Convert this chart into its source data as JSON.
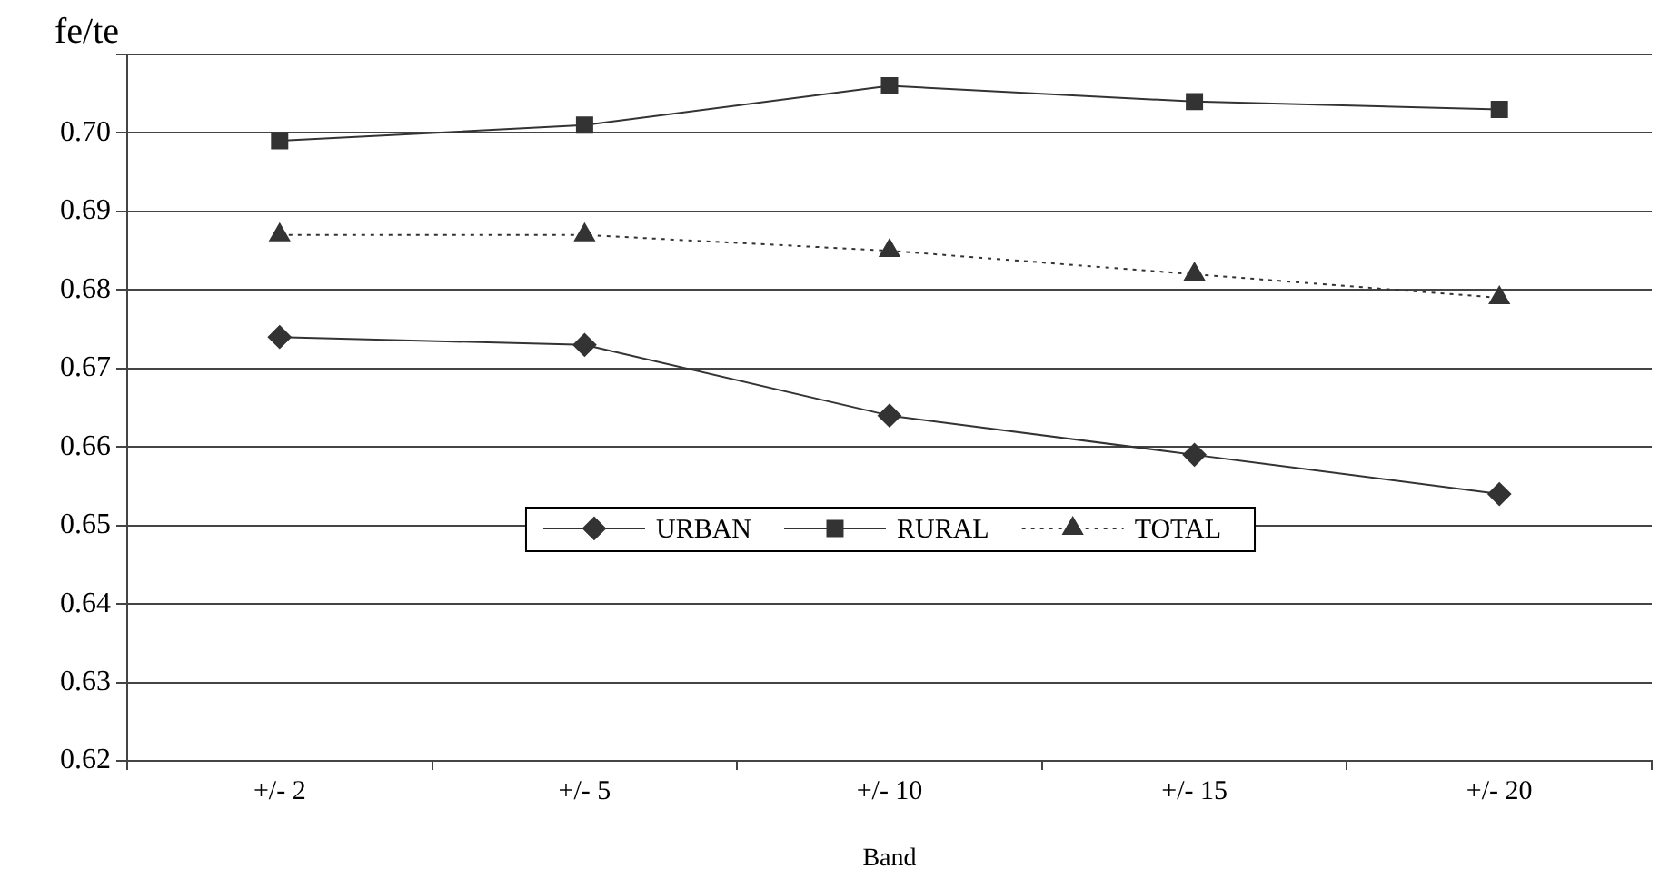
{
  "chart_data": {
    "type": "line",
    "xlabel": "Band",
    "ylabel": "fe/te",
    "categories": [
      "+/- 2",
      "+/- 5",
      "+/- 10",
      "+/- 15",
      "+/- 20"
    ],
    "ylim": [
      0.62,
      0.71
    ],
    "yticks": [
      0.62,
      0.63,
      0.64,
      0.65,
      0.66,
      0.67,
      0.68,
      0.69,
      {
        "value": 0.7,
        "label": "0.70"
      },
      {
        "value": 0.71,
        "label": null
      }
    ],
    "grid": "y",
    "legend": "center",
    "series": [
      {
        "name": "URBAN",
        "color": "#333333",
        "marker": "diamond",
        "line_style": "solid",
        "values": [
          0.674,
          0.673,
          0.664,
          0.659,
          0.654
        ]
      },
      {
        "name": "RURAL",
        "color": "#333333",
        "marker": "square",
        "line_style": "solid",
        "values": [
          0.699,
          0.701,
          0.706,
          0.704,
          0.703
        ]
      },
      {
        "name": "TOTAL",
        "color": "#333333",
        "marker": "triangle",
        "line_style": "dotted",
        "values": [
          0.687,
          0.687,
          0.685,
          0.682,
          0.679
        ]
      }
    ]
  }
}
